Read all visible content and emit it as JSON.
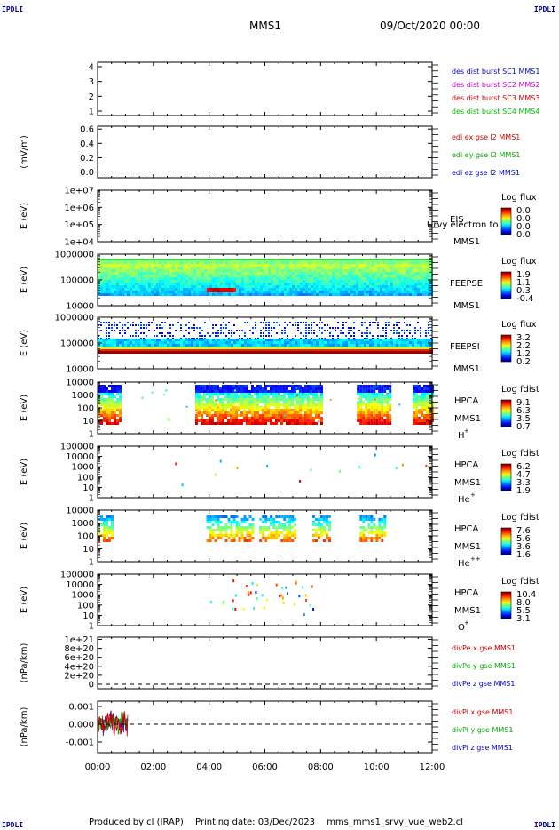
{
  "header": {
    "corner_left": "IPDLI",
    "corner_right": "IPDLI",
    "corner_bottom_left": "IPDLI",
    "corner_bottom_right": "IPDLI",
    "spacecraft": "MMS1",
    "date": "09/Oct/2020 00:00"
  },
  "footer": {
    "produced_by": "Produced by cl (IRAP)",
    "printing_date": "Printing date: 03/Dec/2023",
    "filename": "mms_mms1_srvy_vue_web2.cl"
  },
  "chart_data": [
    {
      "type": "line",
      "id": "burst",
      "ylabel": "",
      "yticks": [
        "4",
        "3",
        "2",
        "1"
      ],
      "ylim": [
        0.7,
        4.3
      ],
      "legend": [
        {
          "text": "des dist burst SC1 MMS1",
          "color": "#0000cc"
        },
        {
          "text": "des dist burst SC2 MMS2",
          "color": "#cc00cc"
        },
        {
          "text": "des dist burst SC3 MMS3",
          "color": "#cc0000"
        },
        {
          "text": "des dist burst SC4 MMS4",
          "color": "#00bb00"
        }
      ]
    },
    {
      "type": "line",
      "id": "edi",
      "ylabel": "(mV/m)",
      "yticks": [
        "0.6",
        "0.4",
        "0.2",
        "0.0"
      ],
      "ylim": [
        -0.08,
        0.64
      ],
      "zero_line": true,
      "legend": [
        {
          "text": "edi ex gse l2 MMS1",
          "color": "#cc0000"
        },
        {
          "text": "edi ey gse l2 MMS1",
          "color": "#00aa00"
        },
        {
          "text": "edi ez gse l2 MMS1",
          "color": "#0000cc"
        }
      ]
    },
    {
      "type": "heatmap",
      "id": "eis",
      "ylabel": "E (eV)",
      "yticks": [
        "1e+07",
        "1e+06",
        "1e+05",
        "1e+04"
      ],
      "instrument": [
        "EIS"
      ],
      "sc": "MMS1",
      "overlay_text": "Urvy electron to",
      "colorbar": {
        "title": "Log flux",
        "ticks": [
          "0.0",
          "0.0",
          "0.0",
          "0.0"
        ]
      }
    },
    {
      "type": "heatmap",
      "id": "feepse",
      "ylabel": "E (eV)",
      "yticks": [
        "1000000",
        "100000",
        "10000"
      ],
      "instrument": [
        "FEEPSE"
      ],
      "sc": "MMS1",
      "colorbar": {
        "title": "Log flux",
        "ticks": [
          "1.9",
          "1.1",
          "0.3",
          "-0.4"
        ]
      }
    },
    {
      "type": "heatmap",
      "id": "feepsi",
      "ylabel": "E (eV)",
      "yticks": [
        "1000000",
        "100000",
        "10000"
      ],
      "instrument": [
        "FEEPSI"
      ],
      "sc": "MMS1",
      "colorbar": {
        "title": "Log flux",
        "ticks": [
          "3.2",
          "2.2",
          "1.2",
          "0.2"
        ]
      }
    },
    {
      "type": "heatmap",
      "id": "hpca-h",
      "ylabel": "E (eV)",
      "yticks": [
        "10000",
        "1000",
        "100",
        "10",
        "1"
      ],
      "instrument": [
        "HPCA",
        "MMS1"
      ],
      "species": "H",
      "charge": "+",
      "colorbar": {
        "title": "Log fdist",
        "ticks": [
          "9.1",
          "6.3",
          "3.5",
          "0.7"
        ]
      },
      "active_hours": [
        [
          0,
          0.8
        ],
        [
          3.5,
          8.0
        ],
        [
          9.3,
          10.5
        ],
        [
          11.3,
          12.0
        ]
      ]
    },
    {
      "type": "heatmap",
      "id": "hpca-he",
      "ylabel": "E (eV)",
      "yticks": [
        "100000",
        "10000",
        "1000",
        "100",
        "10",
        "1"
      ],
      "instrument": [
        "HPCA",
        "MMS1"
      ],
      "species": "He",
      "charge": "+",
      "colorbar": {
        "title": "Log fdist",
        "ticks": [
          "6.2",
          "4.7",
          "3.3",
          "1.9"
        ]
      }
    },
    {
      "type": "heatmap",
      "id": "hpca-he2",
      "ylabel": "E (eV)",
      "yticks": [
        "10000",
        "1000",
        "100",
        "10",
        "1"
      ],
      "instrument": [
        "HPCA",
        "MMS1"
      ],
      "species": "He",
      "charge": "++",
      "colorbar": {
        "title": "Log fdist",
        "ticks": [
          "7.6",
          "5.6",
          "3.6",
          "1.6"
        ]
      },
      "active_hours": [
        [
          0,
          0.5
        ],
        [
          3.9,
          5.6
        ],
        [
          5.8,
          7.1
        ],
        [
          7.7,
          8.3
        ],
        [
          9.4,
          10.3
        ]
      ]
    },
    {
      "type": "heatmap",
      "id": "hpca-o",
      "ylabel": "E (eV)",
      "yticks": [
        "100000",
        "10000",
        "1000",
        "100",
        "10",
        "1"
      ],
      "instrument": [
        "HPCA",
        "MMS1"
      ],
      "species": "O",
      "charge": "+",
      "colorbar": {
        "title": "Log fdist",
        "ticks": [
          "10.4",
          "8.0",
          "5.5",
          "3.1"
        ]
      }
    },
    {
      "type": "line",
      "id": "divpe",
      "ylabel": "(nPa/km)",
      "yticks": [
        "1e+21",
        "8e+20",
        "6e+20",
        "4e+20",
        "2e+20",
        "0"
      ],
      "ylim": [
        -1e+20,
        1.05e+21
      ],
      "zero_line": true,
      "legend": [
        {
          "text": "divPe x gse MMS1",
          "color": "#cc0000"
        },
        {
          "text": "divPe y gse MMS1",
          "color": "#00aa00"
        },
        {
          "text": "divPe z gse MMS1",
          "color": "#0000cc"
        }
      ]
    },
    {
      "type": "line",
      "id": "divpi",
      "ylabel": "(nPa/km)",
      "yticks": [
        "0.001",
        "0.000",
        "-0.001"
      ],
      "ylim": [
        -0.0016,
        0.0013
      ],
      "zero_line": true,
      "data_hours": [
        0,
        1.1
      ],
      "legend": [
        {
          "text": "divPi x gse MMS1",
          "color": "#cc0000"
        },
        {
          "text": "divPi y gse MMS1",
          "color": "#00aa00"
        },
        {
          "text": "divPi z gse MMS1",
          "color": "#0000cc"
        }
      ]
    }
  ],
  "xaxis": {
    "ticks": [
      "00:00",
      "02:00",
      "04:00",
      "06:00",
      "08:00",
      "10:00",
      "12:00"
    ],
    "range_hours": [
      0,
      12
    ]
  },
  "colors": {
    "axis": "#000000"
  }
}
